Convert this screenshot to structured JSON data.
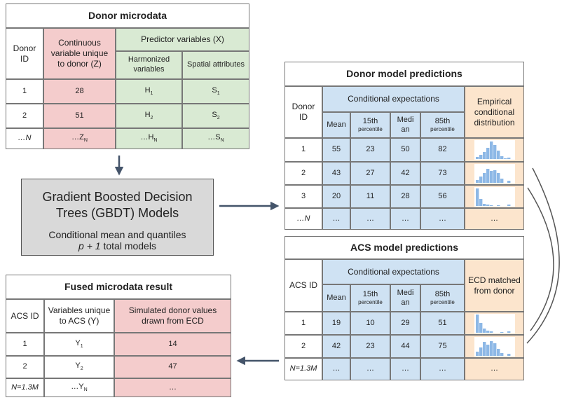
{
  "donor_microdata": {
    "title": "Donor microdata",
    "id_header": "Donor ID",
    "z_header": "Continuous variable unique to donor (Z)",
    "x_header": "Predictor variables (X)",
    "x_subheaders": [
      "Harmonized variables",
      "Spatial attributes"
    ],
    "rows": [
      [
        "1",
        "28",
        {
          "base": "H",
          "sub": "1"
        },
        {
          "base": "S",
          "sub": "1"
        }
      ],
      [
        "2",
        "51",
        {
          "base": "H",
          "sub": "2"
        },
        {
          "base": "S",
          "sub": "2"
        }
      ],
      [
        "…N",
        {
          "base": "…Z",
          "sub": "N"
        },
        {
          "base": "…H",
          "sub": "N"
        },
        {
          "base": "…S",
          "sub": "N"
        }
      ]
    ]
  },
  "model_box": {
    "title": "Gradient Boosted Decision Trees (GBDT) Models",
    "subtitle": "Conditional mean and quantiles",
    "count_expr": "p + 1",
    "count_text": "total models"
  },
  "donor_predictions": {
    "title": "Donor model predictions",
    "id_header": "Donor ID",
    "group_header": "Conditional expectations",
    "stat_headers": [
      "Mean",
      {
        "main": "15th",
        "small": "percentile"
      },
      "Median",
      {
        "main": "85th",
        "small": "percentile"
      }
    ],
    "dist_header": "Empirical conditional distribution",
    "rows": [
      [
        "1",
        "55",
        "23",
        "50",
        "82"
      ],
      [
        "2",
        "43",
        "27",
        "42",
        "73"
      ],
      [
        "3",
        "20",
        "11",
        "28",
        "56"
      ],
      [
        "…N",
        "…",
        "…",
        "…",
        "…",
        "…"
      ]
    ]
  },
  "acs_predictions": {
    "title": "ACS model predictions",
    "id_header": "ACS ID",
    "group_header": "Conditional expectations",
    "stat_headers": [
      "Mean",
      {
        "main": "15th",
        "small": "percentile"
      },
      "Median",
      {
        "main": "85th",
        "small": "percentile"
      }
    ],
    "dist_header": "ECD matched from donor",
    "rows": [
      [
        "1",
        "19",
        "10",
        "29",
        "51"
      ],
      [
        "2",
        "42",
        "23",
        "44",
        "75"
      ],
      [
        "N=1.3M",
        "…",
        "…",
        "…",
        "…",
        "…"
      ]
    ]
  },
  "fused_result": {
    "title": "Fused microdata result",
    "headers": [
      "ACS ID",
      "Variables unique to ACS (Y)",
      "Simulated donor values drawn from ECD"
    ],
    "rows": [
      [
        "1",
        {
          "base": "Y",
          "sub": "1"
        },
        "14"
      ],
      [
        "2",
        {
          "base": "Y",
          "sub": "2"
        },
        "47"
      ],
      [
        "N=1.3M",
        {
          "base": "…Y",
          "sub": "N"
        },
        "…"
      ]
    ]
  }
}
